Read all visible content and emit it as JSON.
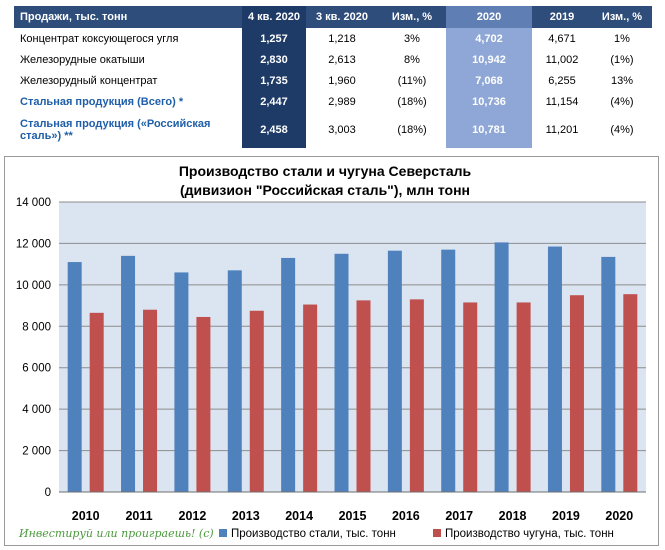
{
  "table": {
    "headers": [
      "Продажи, тыс. тонн",
      "4 кв. 2020",
      "3 кв. 2020",
      "Изм., %",
      "2020",
      "2019",
      "Изм., %"
    ],
    "rows": [
      {
        "label": "Концентрат коксующегося угля",
        "q4_2020": "1,257",
        "q3_2020": "1,218",
        "chg_q": "3%",
        "y2020": "4,702",
        "y2019": "4,671",
        "chg_y": "1%"
      },
      {
        "label": "Железорудные окатыши",
        "q4_2020": "2,830",
        "q3_2020": "2,613",
        "chg_q": "8%",
        "y2020": "10,942",
        "y2019": "11,002",
        "chg_y": "(1%)"
      },
      {
        "label": "Железорудный концентрат",
        "q4_2020": "1,735",
        "q3_2020": "1,960",
        "chg_q": "(11%)",
        "y2020": "7,068",
        "y2019": "6,255",
        "chg_y": "13%"
      },
      {
        "label": "Стальная продукция (Всего) *",
        "q4_2020": "2,447",
        "q3_2020": "2,989",
        "chg_q": "(18%)",
        "y2020": "10,736",
        "y2019": "11,154",
        "chg_y": "(4%)"
      },
      {
        "label": "Стальная продукция («Российская сталь») **",
        "q4_2020": "2,458",
        "q3_2020": "3,003",
        "chg_q": "(18%)",
        "y2020": "10,781",
        "y2019": "11,201",
        "chg_y": "(4%)"
      }
    ]
  },
  "chart_data": {
    "type": "bar",
    "title": "Производство стали и чугуна Северсталь",
    "subtitle": "(дивизион \"Российская сталь\"), млн тонн",
    "categories": [
      "2010",
      "2011",
      "2012",
      "2013",
      "2014",
      "2015",
      "2016",
      "2017",
      "2018",
      "2019",
      "2020"
    ],
    "series": [
      {
        "name": "Производство стали, тыс. тонн",
        "color": "#4f81bd",
        "values": [
          11100,
          11400,
          10600,
          10700,
          11300,
          11500,
          11650,
          11700,
          12050,
          11850,
          11350
        ]
      },
      {
        "name": "Производство чугуна, тыс. тонн",
        "color": "#c0504d",
        "values": [
          8650,
          8800,
          8450,
          8750,
          9050,
          9250,
          9300,
          9150,
          9150,
          9500,
          9550
        ]
      }
    ],
    "ylim": [
      0,
      14000
    ],
    "yticks": [
      0,
      2000,
      4000,
      6000,
      8000,
      10000,
      12000,
      14000
    ],
    "ytick_labels": [
      "0",
      "2 000",
      "4 000",
      "6 000",
      "8 000",
      "10 000",
      "12 000",
      "14 000"
    ],
    "grid": true,
    "legend_position": "bottom"
  },
  "watermark": "Инвестируй или проиграешь! (с)",
  "colors": {
    "header_bg": "#2e4d7b",
    "q4_col_bg": "#1e3a66",
    "y2020_col_bg": "#8fa7d6",
    "highlight_text": "#1f5ea8",
    "plot_bg": "#dbe5f1"
  }
}
